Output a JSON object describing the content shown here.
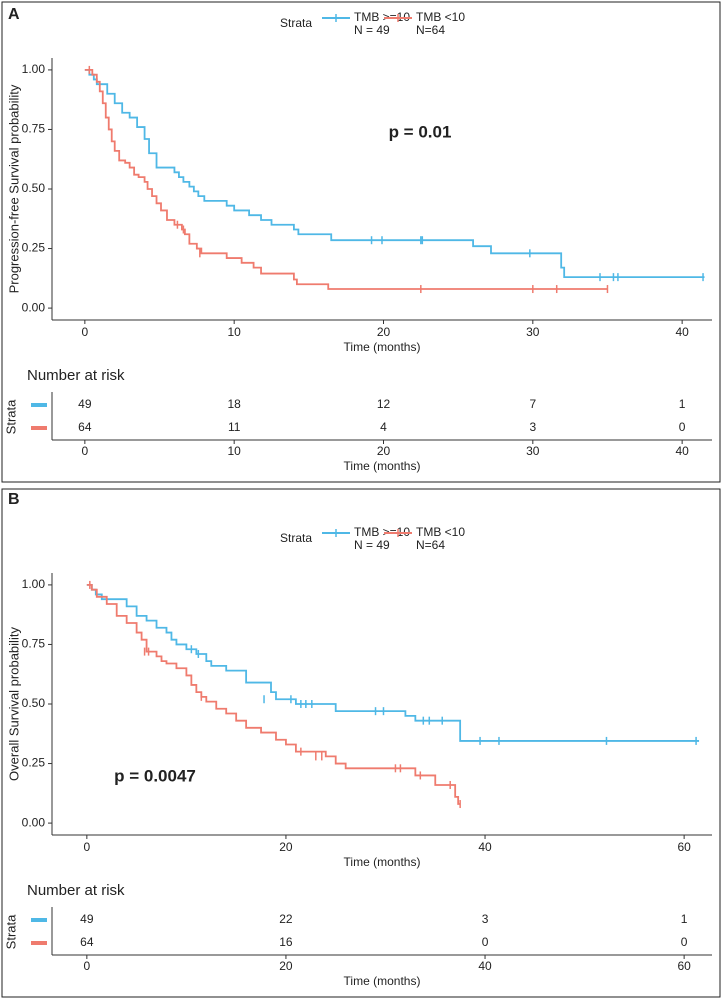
{
  "chart_data": [
    {
      "type": "step",
      "panel_label": "A",
      "y_label": "Progression-free Survival probability",
      "x_label": "Time (months)",
      "legend_title": "Strata",
      "annotation": "p = 0.01",
      "xlim": [
        -2.2,
        42
      ],
      "xticks": [
        0,
        10,
        20,
        30,
        40
      ],
      "ylim": [
        -0.05,
        1.05
      ],
      "yticks": [
        {
          "value": 0,
          "label": "0.00"
        },
        {
          "value": 0.25,
          "label": "0.25"
        },
        {
          "value": 0.5,
          "label": "0.50"
        },
        {
          "value": 0.75,
          "label": "0.75"
        },
        {
          "value": 1,
          "label": "1.00"
        }
      ],
      "series": [
        {
          "name": "TMB >=10",
          "n_label": "N = 49",
          "color": "#4fb8e6",
          "x": [
            0,
            0.3,
            0.6,
            0.8,
            1.5,
            2.0,
            2.5,
            3.0,
            3.5,
            4.0,
            4.3,
            4.8,
            6.0,
            6.3,
            6.6,
            7.0,
            7.3,
            7.6,
            8.0,
            9.5,
            10,
            11,
            11.8,
            12.5,
            14,
            14.3,
            16.5,
            26,
            27.2,
            31.9,
            32.1,
            41.5
          ],
          "values": [
            1.0,
            0.98,
            0.96,
            0.94,
            0.9,
            0.86,
            0.82,
            0.8,
            0.76,
            0.71,
            0.65,
            0.59,
            0.57,
            0.55,
            0.53,
            0.51,
            0.49,
            0.47,
            0.45,
            0.43,
            0.41,
            0.39,
            0.37,
            0.35,
            0.33,
            0.31,
            0.285,
            0.26,
            0.23,
            0.17,
            0.13,
            0.13
          ],
          "censored": {
            "x": [
              19.2,
              19.9,
              22.5,
              22.6,
              29.8,
              34.5,
              35.4,
              35.7,
              41.4
            ],
            "values": [
              0.285,
              0.285,
              0.285,
              0.285,
              0.23,
              0.13,
              0.13,
              0.13,
              0.13
            ]
          }
        },
        {
          "name": "TMB <10",
          "n_label": "N=64",
          "color": "#ef7b6e",
          "x": [
            0,
            0.5,
            0.8,
            1.0,
            1.2,
            1.4,
            1.6,
            1.8,
            2.0,
            2.3,
            2.7,
            3.0,
            3.3,
            3.6,
            4.0,
            4.2,
            4.5,
            4.8,
            5.1,
            5.5,
            6.0,
            6.5,
            6.7,
            7.0,
            7.5,
            7.8,
            9.5,
            10.5,
            11.3,
            11.8,
            14.0,
            14.2,
            16.3,
            35.0
          ],
          "values": [
            1.0,
            0.98,
            0.95,
            0.91,
            0.86,
            0.8,
            0.75,
            0.7,
            0.66,
            0.62,
            0.61,
            0.59,
            0.56,
            0.55,
            0.53,
            0.5,
            0.47,
            0.44,
            0.41,
            0.37,
            0.35,
            0.33,
            0.31,
            0.27,
            0.25,
            0.23,
            0.21,
            0.19,
            0.17,
            0.145,
            0.12,
            0.1,
            0.08,
            0.08
          ],
          "censored": {
            "x": [
              0.3,
              6.2,
              6.6,
              7.7,
              22.5,
              30.0,
              31.6,
              35.0
            ],
            "values": [
              1.0,
              0.35,
              0.33,
              0.23,
              0.08,
              0.08,
              0.08,
              0.08
            ]
          }
        }
      ],
      "risk_table": {
        "title": "Number at risk",
        "y_label": "Strata",
        "x_label": "Time (months)",
        "xlim": [
          -2.2,
          42
        ],
        "times": [
          0,
          10,
          20,
          30,
          40
        ],
        "rows": [
          [
            49,
            18,
            12,
            7,
            1
          ],
          [
            64,
            11,
            4,
            3,
            0
          ]
        ]
      }
    },
    {
      "type": "step",
      "panel_label": "B",
      "y_label": "Overall Survival probability",
      "x_label": "Time (months)",
      "legend_title": "Strata",
      "annotation": "p = 0.0047",
      "xlim": [
        -3.5,
        62.8
      ],
      "xticks": [
        0,
        20,
        40,
        60
      ],
      "ylim": [
        -0.05,
        1.05
      ],
      "yticks": [
        {
          "value": 0,
          "label": "0.00"
        },
        {
          "value": 0.25,
          "label": "0.25"
        },
        {
          "value": 0.5,
          "label": "0.50"
        },
        {
          "value": 0.75,
          "label": "0.75"
        },
        {
          "value": 1,
          "label": "1.00"
        }
      ],
      "series": [
        {
          "name": "TMB >=10",
          "n_label": "N = 49",
          "color": "#4fb8e6",
          "x": [
            0,
            0.5,
            0.9,
            1.5,
            4.0,
            5.0,
            6.0,
            7.0,
            8.0,
            8.5,
            9.0,
            10.0,
            11.0,
            12.0,
            12.5,
            14.0,
            16.0,
            18.5,
            19.0,
            21.0,
            25.0,
            32.0,
            33.0,
            37.5,
            61.5
          ],
          "values": [
            1.0,
            0.98,
            0.96,
            0.94,
            0.91,
            0.87,
            0.85,
            0.82,
            0.8,
            0.77,
            0.75,
            0.73,
            0.71,
            0.68,
            0.66,
            0.64,
            0.59,
            0.55,
            0.52,
            0.5,
            0.47,
            0.45,
            0.43,
            0.345,
            0.345
          ],
          "censored": {
            "x": [
              10.5,
              11.2,
              17.8,
              20.5,
              21.5,
              22.0,
              22.6,
              29.0,
              29.8,
              33.8,
              34.4,
              35.7,
              39.5,
              41.4,
              52.2,
              61.2
            ],
            "values": [
              0.73,
              0.71,
              0.52,
              0.52,
              0.5,
              0.5,
              0.5,
              0.47,
              0.47,
              0.43,
              0.43,
              0.43,
              0.345,
              0.345,
              0.345,
              0.345
            ]
          }
        },
        {
          "name": "TMB <10",
          "n_label": "N=64",
          "color": "#ef7b6e",
          "x": [
            0,
            0.5,
            1.0,
            2.0,
            3.0,
            4.0,
            5.0,
            5.5,
            6.0,
            7.0,
            7.5,
            8.0,
            9.0,
            10.0,
            10.5,
            11.0,
            11.5,
            12.0,
            13.0,
            14.0,
            15.0,
            16.0,
            17.5,
            19.0,
            20.0,
            21.0,
            24.0,
            25.0,
            26.0,
            33.0,
            35.0,
            37.0,
            37.3,
            37.5
          ],
          "values": [
            1.0,
            0.98,
            0.95,
            0.92,
            0.87,
            0.84,
            0.8,
            0.77,
            0.72,
            0.7,
            0.68,
            0.67,
            0.65,
            0.62,
            0.58,
            0.55,
            0.53,
            0.51,
            0.48,
            0.46,
            0.43,
            0.4,
            0.38,
            0.35,
            0.33,
            0.3,
            0.28,
            0.25,
            0.23,
            0.2,
            0.16,
            0.11,
            0.08,
            0.08
          ],
          "censored": {
            "x": [
              0.3,
              5.8,
              6.2,
              11.5,
              21.5,
              23.0,
              23.6,
              31.0,
              31.5,
              33.5,
              36.5,
              37.5
            ],
            "values": [
              1.0,
              0.72,
              0.72,
              0.53,
              0.3,
              0.28,
              0.28,
              0.23,
              0.23,
              0.2,
              0.16,
              0.08
            ]
          }
        }
      ],
      "risk_table": {
        "title": "Number at risk",
        "y_label": "Strata",
        "x_label": "Time (months)",
        "xlim": [
          -3.5,
          62.8
        ],
        "times": [
          0,
          20,
          40,
          60
        ],
        "rows": [
          [
            49,
            22,
            3,
            1
          ],
          [
            64,
            16,
            0,
            0
          ]
        ]
      }
    }
  ]
}
